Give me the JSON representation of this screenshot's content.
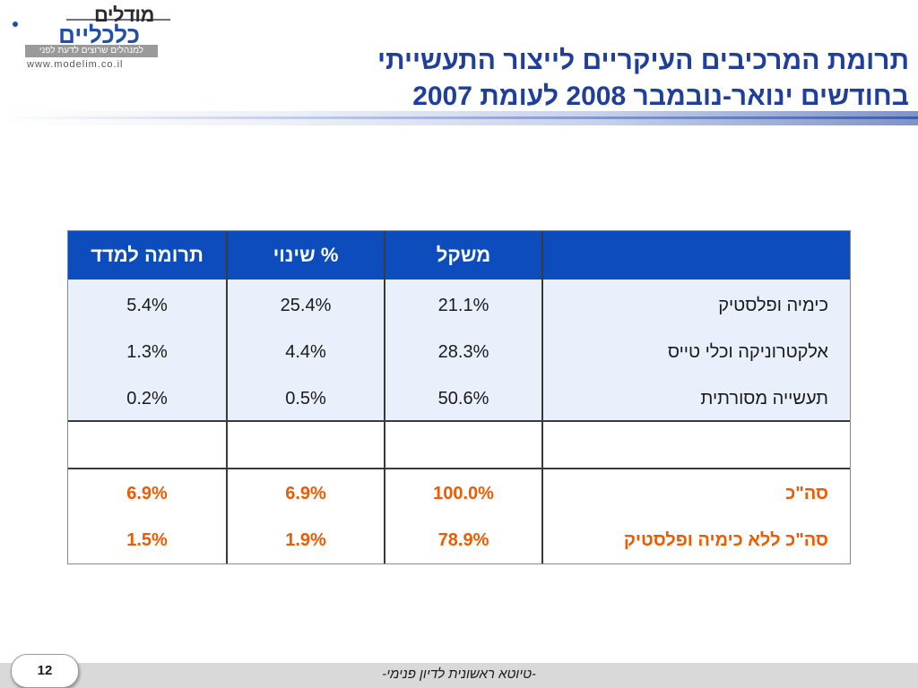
{
  "logo": {
    "brand_line1": "מודלים",
    "brand_line2": "כלכליים",
    "tagline": "למנהלים שרוצים לדעת לפני",
    "url": "www.modelim.co.il"
  },
  "title": {
    "line1": "תרומת המרכיבים העיקריים לייצור התעשייתי",
    "line2": "בחודשים ינואר-נובמבר 2008 לעומת 2007"
  },
  "table": {
    "headers": {
      "sector": "",
      "weight": "משקל",
      "change": "% שינוי",
      "contribution": "תרומה למדד"
    },
    "rows": [
      {
        "sector": "כימיה ופלסטיק",
        "weight": "21.1%",
        "change": "25.4%",
        "contribution": "5.4%"
      },
      {
        "sector": "אלקטרוניקה וכלי טייס",
        "weight": "28.3%",
        "change": "4.4%",
        "contribution": "1.3%"
      },
      {
        "sector": "תעשייה מסורתית",
        "weight": "50.6%",
        "change": "0.5%",
        "contribution": "0.2%"
      }
    ],
    "totals": [
      {
        "sector": "סה\"כ",
        "weight": "100.0%",
        "change": "6.9%",
        "contribution": "6.9%"
      },
      {
        "sector": "סה\"כ ללא כימיה ופלסטיק",
        "weight": "78.9%",
        "change": "1.9%",
        "contribution": "1.5%"
      }
    ]
  },
  "footer": {
    "page_number": "12",
    "note": "-טיוטא ראשונית לדיון פנימי-"
  },
  "colors": {
    "header_blue": "#0c4cbd",
    "title_blue": "#1f3f9a",
    "highlight_orange": "#f05a00"
  }
}
